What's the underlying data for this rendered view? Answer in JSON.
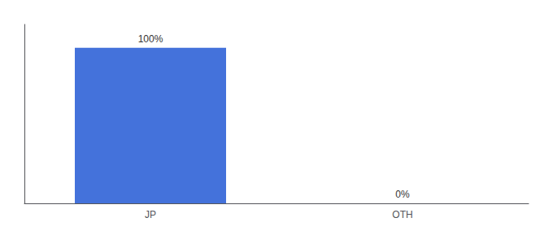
{
  "chart_data": {
    "type": "bar",
    "categories": [
      "JP",
      "OTH"
    ],
    "values": [
      100,
      0
    ],
    "value_labels": [
      "100%",
      "0%"
    ],
    "color": "#4472DB",
    "ylim": [
      0,
      115
    ],
    "grid": false,
    "data_labels": true,
    "tick_labels": "x"
  }
}
